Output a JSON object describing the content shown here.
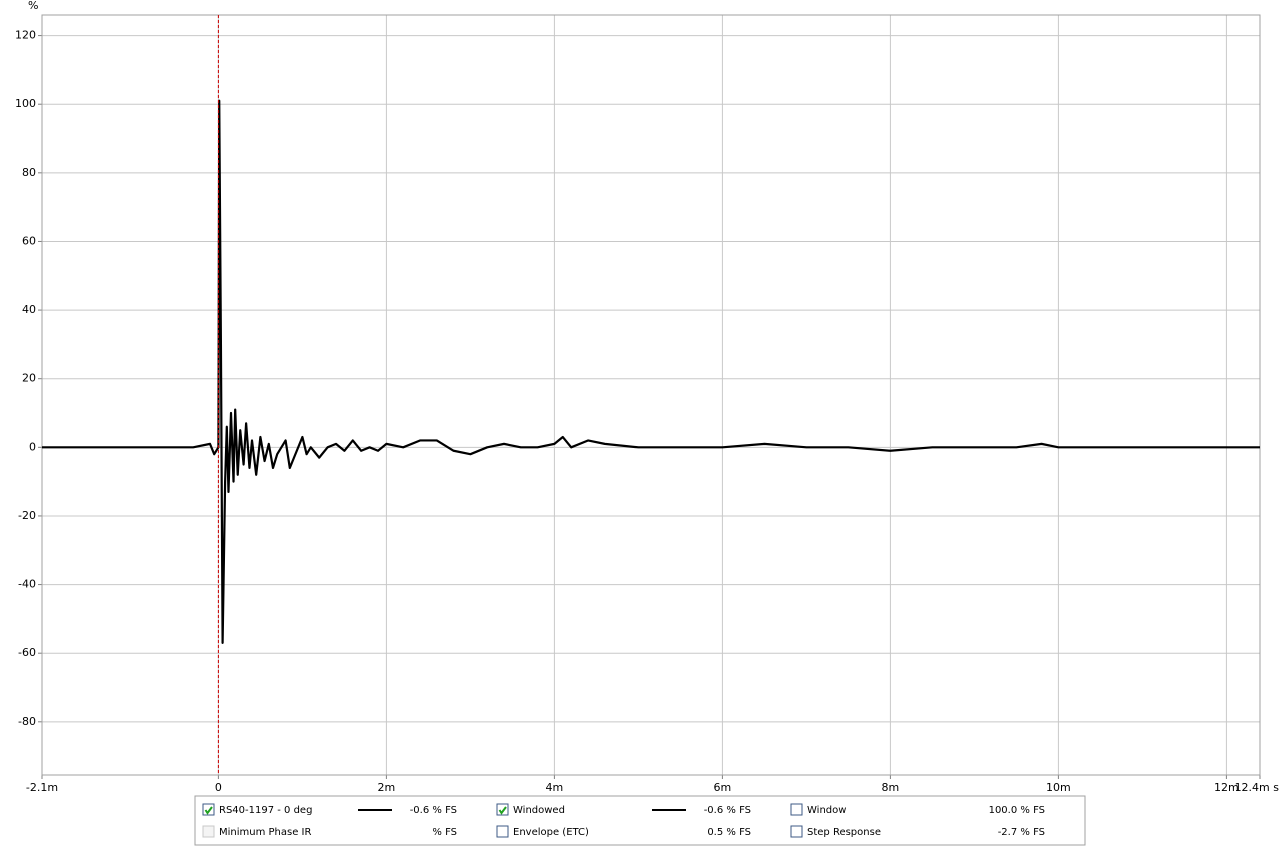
{
  "chart_data": {
    "type": "line",
    "y_label": "%",
    "xlim": [
      -2.1,
      12.4
    ],
    "ylim": [
      -95.5,
      126
    ],
    "xticks": [
      {
        "value": -2.1,
        "label": "-2.1m"
      },
      0,
      {
        "value": 2,
        "label": "2m"
      },
      {
        "value": 4,
        "label": "4m"
      },
      {
        "value": 6,
        "label": "6m"
      },
      {
        "value": 8,
        "label": "8m"
      },
      {
        "value": 10,
        "label": "10m"
      },
      {
        "value": 12,
        "label": "12m"
      },
      {
        "value": 12.4,
        "label": "12.4m s"
      }
    ],
    "yticks": [
      -80,
      -60,
      -40,
      -20,
      0,
      20,
      40,
      60,
      80,
      100,
      120
    ],
    "grid": true,
    "reference_line": {
      "x": 0,
      "color": "#cc0000"
    },
    "x": [
      -2.1,
      -1.0,
      -0.3,
      -0.1,
      -0.05,
      0,
      0.01,
      0.03,
      0.05,
      0.08,
      0.1,
      0.12,
      0.15,
      0.18,
      0.2,
      0.23,
      0.26,
      0.3,
      0.33,
      0.37,
      0.4,
      0.45,
      0.5,
      0.55,
      0.6,
      0.65,
      0.7,
      0.8,
      0.85,
      0.9,
      1.0,
      1.05,
      1.1,
      1.2,
      1.3,
      1.4,
      1.5,
      1.6,
      1.7,
      1.8,
      1.9,
      2.0,
      2.2,
      2.4,
      2.6,
      2.8,
      3.0,
      3.2,
      3.4,
      3.6,
      3.8,
      4.0,
      4.1,
      4.2,
      4.4,
      4.6,
      5.0,
      5.5,
      6.0,
      6.5,
      7.0,
      7.5,
      8.0,
      8.5,
      9.0,
      9.5,
      9.8,
      10.0,
      10.5,
      11.0,
      11.5,
      12.0,
      12.4
    ],
    "series": [
      {
        "name": "RS40-1197 -  0 deg",
        "readout": "-0.6 % FS",
        "color": "#000000",
        "values": [
          0,
          0,
          0,
          1,
          -2,
          0,
          101,
          30,
          -57,
          -10,
          6,
          -13,
          10,
          -10,
          11,
          -8,
          5,
          -5,
          7,
          -6,
          2,
          -8,
          3,
          -4,
          1,
          -6,
          -2,
          2,
          -6,
          -3,
          3,
          -2,
          0,
          -3,
          0,
          1,
          -1,
          2,
          -1,
          0,
          -1,
          1,
          0,
          2,
          2,
          -1,
          -2,
          0,
          1,
          0,
          0,
          1,
          3,
          0,
          2,
          1,
          0,
          0,
          0,
          1,
          0,
          0,
          -1,
          0,
          0,
          0,
          1,
          0,
          0,
          0,
          0,
          0,
          0
        ]
      }
    ]
  },
  "legend_panel": [
    {
      "label": "Windowed",
      "readout": "-0.6 % FS",
      "checked": true,
      "line": true,
      "label_color": "#000000"
    },
    {
      "label": "Window",
      "readout": "100.0 % FS",
      "checked": false,
      "line": false,
      "label_color": "#1a1aa6"
    },
    {
      "label": "Minimum Phase IR",
      "readout": "% FS",
      "checked": false,
      "line": false,
      "label_color": "#a8a8a8"
    },
    {
      "label": "Envelope (ETC)",
      "readout": "0.5 % FS",
      "checked": false,
      "line": false,
      "label_color": "#000000"
    },
    {
      "label": "Step Response",
      "readout": "-2.7 % FS",
      "checked": false,
      "line": false,
      "label_color": "#000000"
    }
  ]
}
